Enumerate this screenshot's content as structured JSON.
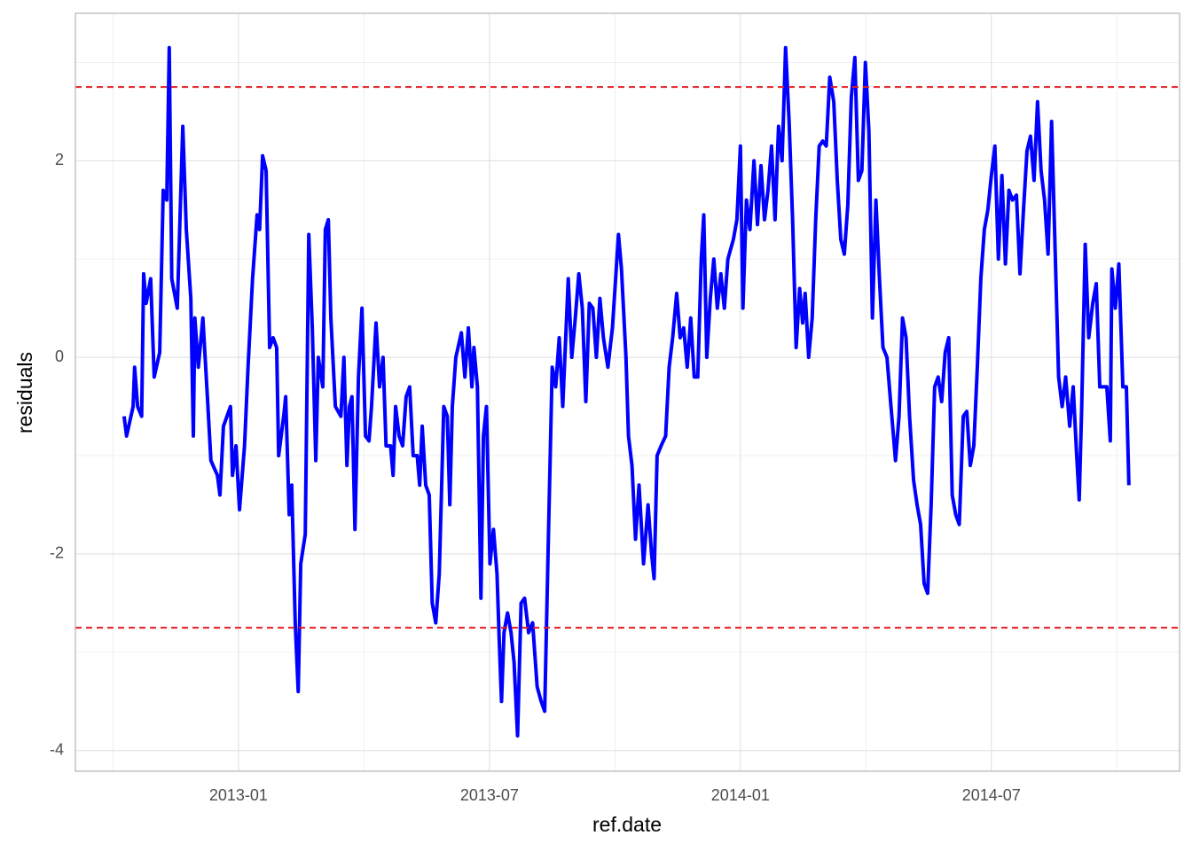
{
  "chart_data": {
    "type": "line",
    "x_label": "ref.date",
    "y_label": "residuals",
    "color": "#0000ff",
    "hlines": [
      2.75,
      -2.75
    ],
    "hline_color": "#e41a1c",
    "grid": true,
    "xlim": [
      2012.675,
      2014.875
    ],
    "xticks": [
      {
        "value": 2013,
        "label": "2013-01"
      },
      {
        "value": 2013.5,
        "label": "2013-07"
      },
      {
        "value": 2014,
        "label": "2014-01"
      },
      {
        "value": 2014.5,
        "label": "2014-07"
      }
    ],
    "ylim": [
      -4.21,
      3.5
    ],
    "yticks": [
      -4,
      -2,
      0,
      2
    ],
    "x": [
      2012.772,
      2012.777,
      2012.79,
      2012.793,
      2012.799,
      2012.807,
      2012.811,
      2012.816,
      2012.825,
      2012.832,
      2012.843,
      2012.85,
      2012.857,
      2012.862,
      2012.867,
      2012.878,
      2012.889,
      2012.896,
      2012.905,
      2012.91,
      2012.913,
      2012.92,
      2012.929,
      2012.938,
      2012.945,
      2012.958,
      2012.963,
      2012.97,
      2012.984,
      2012.988,
      2012.995,
      2013.002,
      2013.012,
      2013.019,
      2013.028,
      2013.037,
      2013.042,
      2013.048,
      2013.055,
      2013.062,
      2013.069,
      2013.076,
      2013.08,
      2013.09,
      2013.094,
      2013.101,
      2013.106,
      2013.113,
      2013.119,
      2013.124,
      2013.133,
      2013.14,
      2013.147,
      2013.154,
      2013.159,
      2013.168,
      2013.173,
      2013.179,
      2013.184,
      2013.193,
      2013.204,
      2013.21,
      2013.216,
      2013.221,
      2013.226,
      2013.232,
      2013.239,
      2013.246,
      2013.253,
      2013.26,
      2013.265,
      2013.274,
      2013.281,
      2013.288,
      2013.294,
      2013.303,
      2013.308,
      2013.313,
      2013.32,
      2013.327,
      2013.334,
      2013.341,
      2013.348,
      2013.356,
      2013.361,
      2013.366,
      2013.373,
      2013.38,
      2013.386,
      2013.393,
      2013.4,
      2013.409,
      2013.416,
      2013.421,
      2013.426,
      2013.433,
      2013.444,
      2013.451,
      2013.458,
      2013.465,
      2013.469,
      2013.476,
      2013.483,
      2013.488,
      2013.494,
      2013.501,
      2013.508,
      2013.515,
      2013.52,
      2013.524,
      2013.529,
      2013.536,
      2013.543,
      2013.549,
      2013.556,
      2013.563,
      2013.57,
      2013.578,
      2013.586,
      2013.595,
      2013.603,
      2013.61,
      2013.618,
      2013.625,
      2013.632,
      2013.639,
      2013.646,
      2013.657,
      2013.664,
      2013.671,
      2013.678,
      2013.685,
      2013.692,
      2013.699,
      2013.706,
      2013.713,
      2013.72,
      2013.727,
      2013.736,
      2013.745,
      2013.752,
      2013.757,
      2013.763,
      2013.772,
      2013.777,
      2013.784,
      2013.791,
      2013.798,
      2013.807,
      2013.816,
      2013.823,
      2013.828,
      2013.834,
      2013.842,
      2013.851,
      2013.858,
      2013.865,
      2013.873,
      2013.88,
      2013.887,
      2013.894,
      2013.901,
      2013.908,
      2013.915,
      2013.922,
      2013.927,
      2013.933,
      2013.94,
      2013.947,
      2013.954,
      2013.961,
      2013.968,
      2013.975,
      2013.986,
      2013.993,
      2014.0,
      2014.005,
      2014.012,
      2014.019,
      2014.027,
      2014.034,
      2014.041,
      2014.048,
      2014.055,
      2014.062,
      2014.069,
      2014.076,
      2014.083,
      2014.09,
      2014.097,
      2014.104,
      2014.111,
      2014.118,
      2014.124,
      2014.129,
      2014.136,
      2014.143,
      2014.15,
      2014.157,
      2014.164,
      2014.171,
      2014.178,
      2014.186,
      2014.193,
      2014.2,
      2014.207,
      2014.214,
      2014.221,
      2014.228,
      2014.235,
      2014.242,
      2014.249,
      2014.256,
      2014.263,
      2014.27,
      2014.277,
      2014.284,
      2014.292,
      2014.3,
      2014.309,
      2014.316,
      2014.323,
      2014.33,
      2014.337,
      2014.345,
      2014.352,
      2014.359,
      2014.366,
      2014.373,
      2014.38,
      2014.387,
      2014.394,
      2014.401,
      2014.408,
      2014.415,
      2014.422,
      2014.429,
      2014.436,
      2014.444,
      2014.451,
      2014.458,
      2014.465,
      2014.472,
      2014.479,
      2014.486,
      2014.493,
      2014.5,
      2014.507,
      2014.514,
      2014.521,
      2014.528,
      2014.535,
      2014.542,
      2014.55,
      2014.557,
      2014.564,
      2014.571,
      2014.578,
      2014.585,
      2014.592,
      2014.599,
      2014.606,
      2014.613,
      2014.62,
      2014.627,
      2014.634,
      2014.641,
      2014.648,
      2014.656,
      2014.663,
      2014.67,
      2014.675,
      2014.68,
      2014.687,
      2014.694,
      2014.702,
      2014.709,
      2014.716,
      2014.723,
      2014.73,
      2014.737,
      2014.74,
      2014.747,
      2014.754,
      2014.762,
      2014.769,
      2014.774
    ],
    "values": [
      -0.6,
      -0.8,
      -0.5,
      -0.1,
      -0.5,
      -0.6,
      0.85,
      0.55,
      0.8,
      -0.2,
      0.05,
      1.7,
      1.6,
      3.15,
      0.8,
      0.5,
      2.35,
      1.3,
      0.6,
      -0.8,
      0.4,
      -0.1,
      0.4,
      -0.4,
      -1.05,
      -1.2,
      -1.4,
      -0.7,
      -0.5,
      -1.2,
      -0.9,
      -1.55,
      -0.9,
      -0.1,
      0.8,
      1.45,
      1.3,
      2.05,
      1.9,
      0.1,
      0.2,
      0.1,
      -1.0,
      -0.6,
      -0.4,
      -1.6,
      -1.3,
      -2.7,
      -3.4,
      -2.1,
      -1.8,
      1.25,
      0.3,
      -1.05,
      0.0,
      -0.3,
      1.3,
      1.4,
      0.4,
      -0.5,
      -0.6,
      0.0,
      -1.1,
      -0.5,
      -0.4,
      -1.75,
      -0.2,
      0.5,
      -0.8,
      -0.85,
      -0.5,
      0.35,
      -0.3,
      0.0,
      -0.9,
      -0.9,
      -1.2,
      -0.5,
      -0.8,
      -0.9,
      -0.4,
      -0.3,
      -1.0,
      -1.0,
      -1.3,
      -0.7,
      -1.3,
      -1.4,
      -2.5,
      -2.7,
      -2.2,
      -0.5,
      -0.6,
      -1.5,
      -0.5,
      0.0,
      0.25,
      -0.2,
      0.3,
      -0.3,
      0.1,
      -0.3,
      -2.45,
      -0.8,
      -0.5,
      -2.1,
      -1.75,
      -2.2,
      -2.95,
      -3.5,
      -2.8,
      -2.6,
      -2.8,
      -3.1,
      -3.85,
      -2.5,
      -2.45,
      -2.8,
      -2.7,
      -3.35,
      -3.5,
      -3.6,
      -1.7,
      -0.1,
      -0.3,
      0.2,
      -0.5,
      0.8,
      0.0,
      0.4,
      0.85,
      0.5,
      -0.45,
      0.55,
      0.5,
      0.0,
      0.6,
      0.2,
      -0.1,
      0.3,
      0.85,
      1.25,
      0.9,
      0.0,
      -0.8,
      -1.1,
      -1.85,
      -1.3,
      -2.1,
      -1.5,
      -2.0,
      -2.25,
      -1.0,
      -0.9,
      -0.8,
      -0.1,
      0.2,
      0.65,
      0.2,
      0.3,
      -0.1,
      0.4,
      -0.2,
      -0.2,
      1.0,
      1.45,
      0.0,
      0.6,
      1.0,
      0.5,
      0.85,
      0.5,
      1.0,
      1.2,
      1.4,
      2.15,
      0.5,
      1.6,
      1.3,
      2.0,
      1.35,
      1.95,
      1.4,
      1.7,
      2.15,
      1.4,
      2.35,
      2.0,
      3.15,
      2.4,
      1.4,
      0.1,
      0.7,
      0.35,
      0.65,
      0.0,
      0.4,
      1.4,
      2.15,
      2.2,
      2.15,
      2.85,
      2.6,
      1.8,
      1.2,
      1.05,
      1.55,
      2.65,
      3.05,
      1.8,
      1.9,
      3.0,
      2.3,
      0.4,
      1.6,
      0.8,
      0.1,
      0.0,
      -0.5,
      -1.05,
      -0.6,
      0.4,
      0.2,
      -0.6,
      -1.25,
      -1.5,
      -1.7,
      -2.3,
      -2.4,
      -1.5,
      -0.3,
      -0.2,
      -0.45,
      0.05,
      0.2,
      -1.4,
      -1.6,
      -1.7,
      -0.6,
      -0.55,
      -1.1,
      -0.9,
      -0.1,
      0.8,
      1.3,
      1.5,
      1.85,
      2.15,
      1.0,
      1.85,
      0.95,
      1.7,
      1.6,
      1.65,
      0.85,
      1.5,
      2.1,
      2.25,
      1.8,
      2.6,
      1.9,
      1.6,
      1.05,
      2.4,
      1.1,
      -0.2,
      -0.5,
      -0.2,
      -0.7,
      -0.3,
      -1.0,
      -1.45,
      -0.5,
      1.15,
      0.2,
      0.55,
      0.75,
      -0.3,
      -0.3,
      -0.3,
      -0.85,
      0.9,
      0.5,
      0.95,
      -0.3,
      -0.3,
      -1.3
    ]
  }
}
